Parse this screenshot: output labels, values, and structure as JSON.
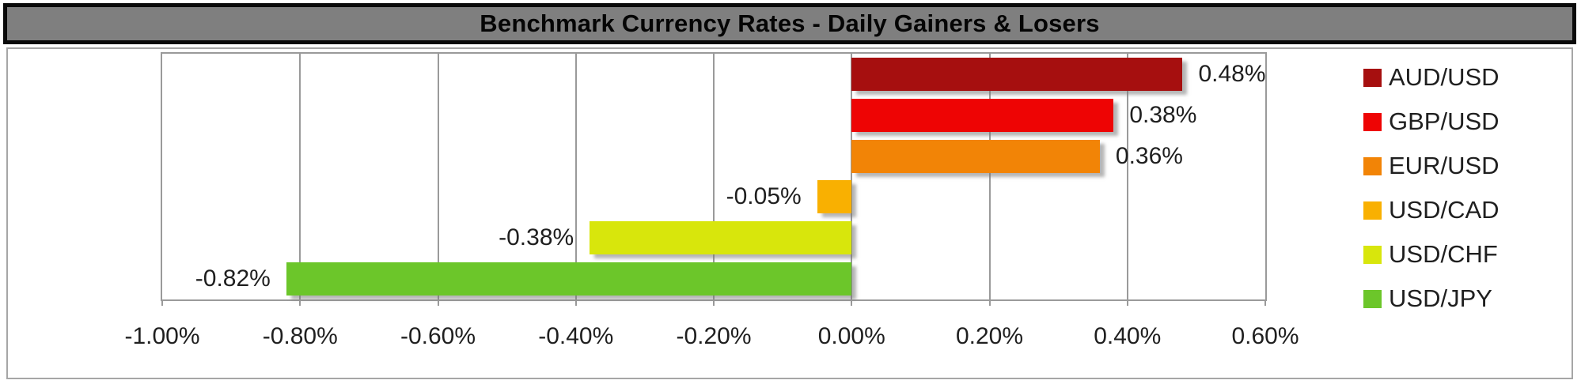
{
  "title": "Benchmark Currency Rates - Daily Gainers & Losers",
  "colors": {
    "title_bar_bg": "#7f7f7f",
    "title_bar_border": "#0a0a0a",
    "chart_border": "#a6a6a6",
    "gridline": "#9a9a9a",
    "label_text": "#1f1f1f",
    "bar_shadow": "#9b9b9b"
  },
  "chart_data": {
    "type": "bar",
    "orientation": "horizontal",
    "title": "Benchmark Currency Rates - Daily Gainers & Losers",
    "categories": [
      "AUD/USD",
      "GBP/USD",
      "EUR/USD",
      "USD/CAD",
      "USD/CHF",
      "USD/JPY"
    ],
    "values": [
      0.48,
      0.38,
      0.36,
      -0.05,
      -0.38,
      -0.82
    ],
    "value_labels": [
      "0.48%",
      "0.38%",
      "0.36%",
      "-0.05%",
      "-0.38%",
      "-0.82%"
    ],
    "bar_colors": [
      "#a60f0f",
      "#ee0404",
      "#f28406",
      "#f9b001",
      "#d8e60c",
      "#6cc62a"
    ],
    "x_ticks": [
      {
        "value": -1.0,
        "label": "-1.00%"
      },
      {
        "value": -0.8,
        "label": "-0.80%"
      },
      {
        "value": -0.6,
        "label": "-0.60%"
      },
      {
        "value": -0.4,
        "label": "-0.40%"
      },
      {
        "value": -0.2,
        "label": "-0.20%"
      },
      {
        "value": 0.0,
        "label": "0.00%"
      },
      {
        "value": 0.2,
        "label": "0.20%"
      },
      {
        "value": 0.4,
        "label": "0.40%"
      },
      {
        "value": 0.6,
        "label": "0.60%"
      }
    ],
    "xlim": [
      -1.0,
      0.6
    ],
    "grid": true,
    "legend_position": "right",
    "legend": [
      {
        "label": "AUD/USD",
        "color": "#a60f0f"
      },
      {
        "label": "GBP/USD",
        "color": "#ee0404"
      },
      {
        "label": "EUR/USD",
        "color": "#f28406"
      },
      {
        "label": "USD/CAD",
        "color": "#f9b001"
      },
      {
        "label": "USD/CHF",
        "color": "#d8e60c"
      },
      {
        "label": "USD/JPY",
        "color": "#6cc62a"
      }
    ]
  }
}
